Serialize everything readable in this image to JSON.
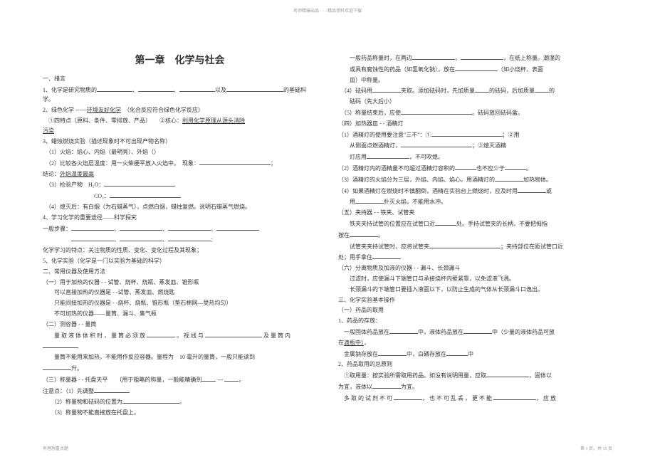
{
  "header": "名师精编出品 - - - 精品资料欢迎下载",
  "title": "第一章　化学与社会",
  "left_lines": [
    "一、绪言",
    "1、化学是研究物质的BLANK50、BLANK50、BLANK50以及BLANK80的基础科学。",
    "2、绿色化学 ------UL:环境友好化学　（化合反应符合绿色化学反应）",
    "　①四特点（原料、条件、零排放、产品）　　②核心：UL:利用化学原理从源头消除",
    "UL:污染",
    "3、蜡烛燃烧实验（描述现象时不可出现产物名称）",
    "　（1）火焰：焰心、内焰（最明亮）、外焰（）",
    "　（2）比较各火焰层温度：用一火柴梗平放入火焰中。　现象：BLANK100；",
    "结论：UL:外焰温度最高",
    "　（3）检验产物　H₂O：BLANK100",
    "　　　　　　　　　CO₂：BLANK100",
    "　（4）熄灭后：有白烟（为石蜡蒸气），点燃白烟，蜡烛复燃。说明石蜡蒸气燃烧。",
    "4、学习化学的重要途径——科学探究",
    "一般步骤：BLANK60、BLANK60、BLANK60、BLANK60",
    "　　　　　BLANK60、BLANK60、BLANK60;",
    "化学学习的特点：关注物质的性质、变化、变化过程及其现象；",
    "5、化学实验（化学是一门以实验为基础的科学）",
    "二、常用仪器及使用方法",
    "（一）用于加热的仪器 - - 试管、烧杯、烧瓶、蒸发皿、锥形瓶",
    "　　可以直接加热的仪器是 - -试管、蒸发皿、燃烧匙",
    "　　只能间接加热的仪器是 - -烧杯、烧瓶、锥形瓶（垫石棉网—受热均匀）",
    "　　不可加热的仪器——量筒、漏斗、集气瓶",
    "（二）测容器 - - 量筒",
    "　　量 取 液 体 体 积 时 ， 量 筒 必 须 放 BLANK40 。 视 线 与 BLANK80 及 量 筒 内",
    "BLANK50",
    "　　量筒不能用来加热，不能用作反应容器。量程为　10 毫升的量筒，一般只能读到",
    "BLANK40升。",
    "（三）称量器 - - 托盘天平　　（用于粗略的称量，一般能精确到BLANK20 --- BLANK20。",
    "注意点：（1）先调整BLANK50",
    "　　（2）称量物和砝码的位置为BLANK80。",
    "　　（3）称量物不能直接放在托盘上。"
  ],
  "right_lines": [
    "　　一般药品称量时，在两边BLANK60，BLANK60，在纸上称量。潮湿的",
    "　　或具有腐蚀性的药品（如氢氧化钠），放在BLANK60（如小烧杯、表面",
    "　　皿）中称量。",
    "　（4）砝码用BLANK40夹取。添加砝码时，先加质量BLANK20的砝码，后加质量BLANK20的",
    "　　砝码（先大后小）",
    "　（5）称量结束后，应使BLANK100。砝码放回砝码盒。",
    "（四）加热器皿 - - 酒精灯",
    "（1）酒精灯的使用要注意\"三不\"：①BLANK100；②用",
    "　　从侧面点燃酒精灯，BLANK100；③熄灭酒精",
    "　　灯应用BLANK60，不可吹熄。",
    "（2）酒精灯内的酒精量不可超过酒精灯容积的BLANK30也不应少于BLANK30。",
    "（3）酒精灯的火焰分为三层，外焰、内焰、焰心。用酒精灯的BLANK40加热物体。",
    "（4）如果酒精灯在燃烧时不慎翻倒，酒精在实验台上燃烧时，应及时用BLANK40或",
    "　　用BLANK40扑灭火焰，不能用水冲。",
    "（五）夹持器 - - 铁夹、试管夹",
    "　　铁夹夹持试管的位置应在试管口近BLANK30处。手持试管夹的长柄，不要把拇指",
    "按在BLANK40。",
    "　　试管夹夹持试管时，应将试管夹BLANK100；夹持部位在距试管口近",
    "处；用手拿住BLANK40",
    "（六）分离物质及加液的仪器 - - 漏斗、长颈漏斗",
    "　　过滤时，应使漏斗下端管口与承接烧杯内壁紧靠，以免滤液飞溅。",
    "　　长颈漏斗的下端管口要插入液面以下，以防止生成的气体从长颈漏斗口逸出。",
    "三、化学实验基本操作",
    "（一）药品的取用",
    "1、药品的存放：",
    "　一般固体药品放在BLANK40中，液体药品放在BLANK40中（少量的液体药品可放",
    "在UL:滴瓶中），",
    "　金属钠存放在BLANK40中，白磷存放在BLANK30中",
    "2、药品取用的总原则",
    "　①取用量：按实验所需取用药品。如没有说明用量，应取BLANK60，固体以",
    "为宜，液体以BLANK40为宜。",
    "　多 取 的 试 剂 不 可 BLANK40， 也 不 可 乱 丢 ， 更 不 能 BLANK60， 应 放"
  ],
  "footer_left": "有理想重点题",
  "footer_right": "第 1 页，共 15 页"
}
